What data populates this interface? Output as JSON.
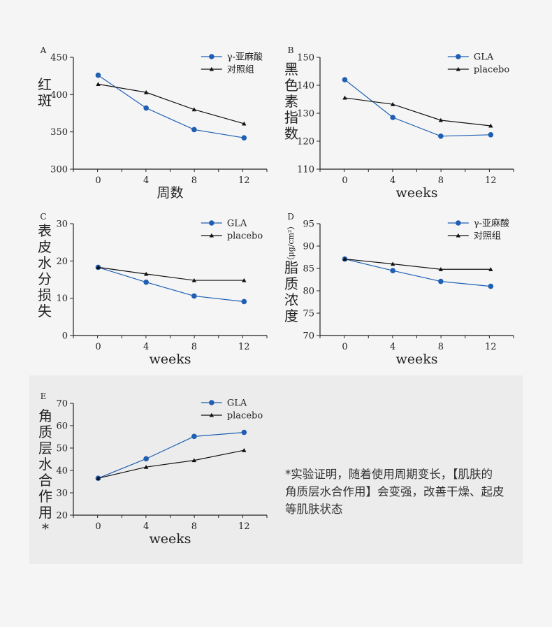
{
  "colors": {
    "gla": "#1f5fb3",
    "placebo": "#111111",
    "axis": "#222222"
  },
  "chart_data": [
    {
      "id": "A",
      "type": "line",
      "panel_label": "A",
      "ylabel_chars": [
        "红",
        "斑"
      ],
      "ylabel_unit": "",
      "xlabel": "周数",
      "categories": [
        "0",
        "4",
        "8",
        "12"
      ],
      "ylim": [
        300,
        450
      ],
      "yticks": [
        300,
        350,
        400,
        450
      ],
      "legend_position": "top-right",
      "series": [
        {
          "name": "γ-亚麻酸",
          "marker": "circle",
          "values": [
            426,
            382,
            353,
            342
          ]
        },
        {
          "name": "对照组",
          "marker": "triangle",
          "values": [
            414,
            403,
            380,
            361
          ]
        }
      ]
    },
    {
      "id": "B",
      "type": "line",
      "panel_label": "B",
      "ylabel_chars": [
        "黑",
        "色",
        "素",
        "指",
        "数"
      ],
      "ylabel_unit": "",
      "xlabel": "weeks",
      "categories": [
        "0",
        "4",
        "8",
        "12"
      ],
      "ylim": [
        110,
        150
      ],
      "yticks": [
        110,
        120,
        130,
        140,
        150
      ],
      "legend_position": "top-right",
      "series": [
        {
          "name": "GLA",
          "marker": "circle",
          "values": [
            142,
            128.5,
            121.8,
            122.3
          ]
        },
        {
          "name": "placebo",
          "marker": "triangle",
          "values": [
            135.5,
            133.2,
            127.5,
            125.5
          ]
        }
      ]
    },
    {
      "id": "C",
      "type": "line",
      "panel_label": "C",
      "ylabel_chars": [
        "表",
        "皮",
        "水",
        "分",
        "损",
        "失"
      ],
      "ylabel_unit": "",
      "xlabel": "weeks",
      "categories": [
        "0",
        "4",
        "8",
        "12"
      ],
      "ylim": [
        0,
        30
      ],
      "yticks": [
        0,
        10,
        20,
        30
      ],
      "legend_position": "top-right",
      "series": [
        {
          "name": "GLA",
          "marker": "circle",
          "values": [
            18.3,
            14.3,
            10.6,
            9.1
          ]
        },
        {
          "name": "placebo",
          "marker": "triangle",
          "values": [
            18.3,
            16.5,
            14.8,
            14.8
          ]
        }
      ]
    },
    {
      "id": "D",
      "type": "line",
      "panel_label": "D",
      "ylabel_chars": [
        "脂",
        "质",
        "浓",
        "度"
      ],
      "ylabel_unit": "（μg/cm²）",
      "xlabel": "weeks",
      "categories": [
        "0",
        "4",
        "8",
        "12"
      ],
      "ylim": [
        70,
        95
      ],
      "yticks": [
        70,
        75,
        80,
        85,
        90,
        95
      ],
      "legend_position": "top-right",
      "series": [
        {
          "name": "γ-亚麻酸",
          "marker": "circle",
          "values": [
            87.1,
            84.5,
            82.1,
            81.0
          ]
        },
        {
          "name": "对照组",
          "marker": "triangle",
          "values": [
            87.1,
            86.0,
            84.8,
            84.8
          ]
        }
      ]
    },
    {
      "id": "E",
      "type": "line",
      "panel_label": "E",
      "ylabel_chars": [
        "角",
        "质",
        "层",
        "水",
        "合",
        "作",
        "用",
        "*"
      ],
      "ylabel_unit": "",
      "xlabel": "weeks",
      "categories": [
        "0",
        "4",
        "8",
        "12"
      ],
      "ylim": [
        20,
        70
      ],
      "yticks": [
        20,
        30,
        40,
        50,
        60,
        70
      ],
      "legend_position": "top-right",
      "series": [
        {
          "name": "GLA",
          "marker": "circle",
          "values": [
            36.5,
            45.2,
            55.2,
            57.0
          ]
        },
        {
          "name": "placebo",
          "marker": "triangle",
          "values": [
            36.5,
            41.5,
            44.5,
            49.0
          ]
        }
      ]
    }
  ],
  "note": {
    "lines": [
      "*实验证明，随着使用周期变长，【肌肤的",
      "角质层水合作用】会变强，改善干燥、起皮",
      "等肌肤状态"
    ]
  }
}
